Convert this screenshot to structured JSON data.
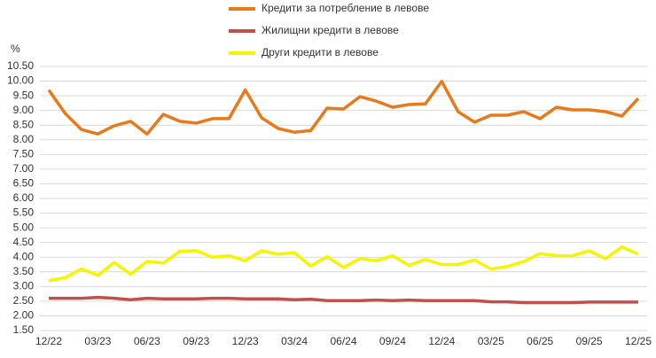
{
  "chart_data": {
    "type": "line",
    "y_label": "%",
    "categories": [
      "12/22",
      null,
      null,
      "03/23",
      null,
      null,
      "06/23",
      null,
      null,
      "09/23",
      null,
      null,
      "12/23",
      null,
      null,
      "03/24",
      null,
      null,
      "06/24",
      null,
      null,
      "09/24",
      null,
      null,
      "12/24",
      null,
      null,
      "03/25",
      null,
      null,
      "06/25",
      null,
      null,
      "09/25",
      null,
      null,
      "12/25"
    ],
    "series": [
      {
        "name": "Кредити за потребление в левове",
        "color": "#e87a1c",
        "values": [
          9.7,
          8.9,
          8.35,
          8.2,
          8.48,
          8.63,
          8.2,
          8.87,
          8.63,
          8.57,
          8.72,
          8.72,
          9.7,
          8.75,
          8.39,
          8.26,
          8.32,
          9.08,
          9.05,
          9.47,
          9.32,
          9.11,
          9.2,
          9.23,
          9.99,
          8.96,
          8.6,
          8.84,
          8.84,
          8.96,
          8.72,
          9.11,
          9.02,
          9.02,
          8.96,
          8.81,
          9.41
        ]
      },
      {
        "name": "Жилищни кредити в левове",
        "color": "#c0504d",
        "values": [
          2.6,
          2.6,
          2.6,
          2.63,
          2.6,
          2.55,
          2.6,
          2.58,
          2.58,
          2.58,
          2.6,
          2.6,
          2.58,
          2.58,
          2.58,
          2.55,
          2.57,
          2.52,
          2.52,
          2.52,
          2.54,
          2.52,
          2.54,
          2.52,
          2.52,
          2.52,
          2.52,
          2.48,
          2.48,
          2.45,
          2.45,
          2.45,
          2.45,
          2.47,
          2.47,
          2.47,
          2.47
        ]
      },
      {
        "name": "Други кредити в левове",
        "color": "#f5f500",
        "values": [
          3.2,
          3.3,
          3.6,
          3.38,
          3.82,
          3.42,
          3.85,
          3.8,
          4.2,
          4.22,
          4.0,
          4.05,
          3.88,
          4.22,
          4.1,
          4.15,
          3.7,
          4.02,
          3.65,
          3.95,
          3.88,
          4.05,
          3.72,
          3.92,
          3.75,
          3.75,
          3.9,
          3.6,
          3.68,
          3.85,
          4.12,
          4.05,
          4.05,
          4.22,
          3.95,
          4.35,
          4.1
        ]
      }
    ],
    "ylim": [
      1.5,
      10.5
    ],
    "yticks": [
      {
        "value": 1.5,
        "label": "1.50"
      },
      {
        "value": 2,
        "label": "2.00"
      },
      {
        "value": 2.5,
        "label": "2.50"
      },
      {
        "value": 3,
        "label": "3.00"
      },
      {
        "value": 3.5,
        "label": "3.50"
      },
      {
        "value": 4,
        "label": "4.00"
      },
      {
        "value": 4.5,
        "label": "4.50"
      },
      {
        "value": 5,
        "label": "5.00"
      },
      {
        "value": 5.5,
        "label": "5.50"
      },
      {
        "value": 6,
        "label": "6.00"
      },
      {
        "value": 6.5,
        "label": "6.50"
      },
      {
        "value": 7,
        "label": "7.00"
      },
      {
        "value": 7.5,
        "label": "7.50"
      },
      {
        "value": 8,
        "label": "8.00"
      },
      {
        "value": 8.5,
        "label": "8.50"
      },
      {
        "value": 9,
        "label": "9.00"
      },
      {
        "value": 9.5,
        "label": "9.50"
      },
      {
        "value": 10,
        "label": "10.00"
      },
      {
        "value": 10.5,
        "label": "10.50"
      }
    ],
    "grid": true
  }
}
